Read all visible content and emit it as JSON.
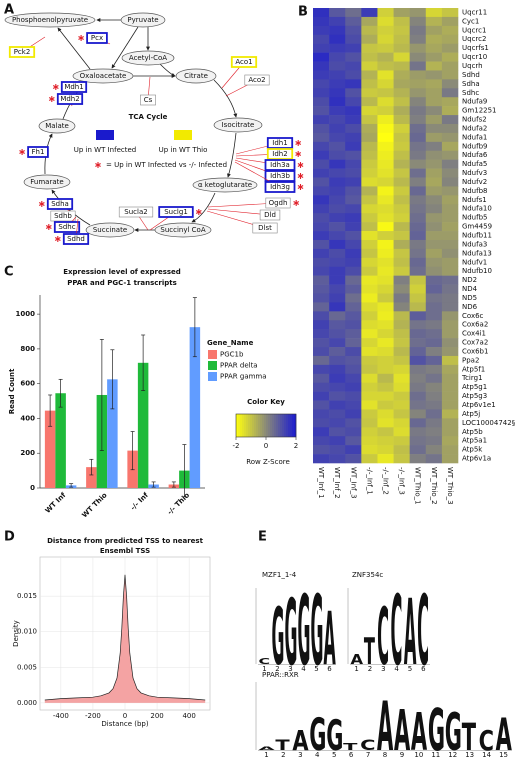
{
  "panel_labels": [
    "A",
    "B",
    "C",
    "D",
    "E"
  ],
  "tca": {
    "title": "TCA Cycle",
    "metabolites": [
      "Phosphoenolpyruvate",
      "Pyruvate",
      "Acetyl-CoA",
      "Oxaloacetate",
      "Citrate",
      "Isocitrate",
      "α ketoglutarate",
      "Succinyl CoA",
      "Succinate",
      "Fumarate",
      "Malate"
    ],
    "enzymes": [
      {
        "name": "Pck2",
        "up": 1,
        "star": false
      },
      {
        "name": "Pcx",
        "up": 0,
        "star": true
      },
      {
        "name": "Cs",
        "up": null,
        "star": false
      },
      {
        "name": "Aco1",
        "up": 1,
        "star": false
      },
      {
        "name": "Aco2",
        "up": null,
        "star": false
      },
      {
        "name": "Mdh1",
        "up": 0,
        "star": true
      },
      {
        "name": "Mdh2",
        "up": 0,
        "star": true
      },
      {
        "name": "Idh1",
        "up": 0,
        "star": true
      },
      {
        "name": "Idh2",
        "up": 1,
        "star": true
      },
      {
        "name": "Idh3a",
        "up": 0,
        "star": true
      },
      {
        "name": "Idh3b",
        "up": 0,
        "star": true
      },
      {
        "name": "Idh3g",
        "up": 0,
        "star": true
      },
      {
        "name": "Fh1",
        "up": 0,
        "star": true
      },
      {
        "name": "Ogdh",
        "up": null,
        "star": true
      },
      {
        "name": "Dld",
        "up": null,
        "star": false
      },
      {
        "name": "Dlst",
        "up": null,
        "star": false
      },
      {
        "name": "Sucla2",
        "up": null,
        "star": false
      },
      {
        "name": "Suclg1",
        "up": 0,
        "star": true
      },
      {
        "name": "Sdha",
        "up": 0,
        "star": true
      },
      {
        "name": "Sdhb",
        "up": null,
        "star": false
      },
      {
        "name": "Sdhc",
        "up": 0,
        "star": true
      },
      {
        "name": "Sdhd",
        "up": 0,
        "star": true
      }
    ],
    "legend": [
      {
        "label": "Up in WT Infected",
        "color": "#1a1acc"
      },
      {
        "label": "Up in WT Thio",
        "color": "#f2ea00"
      }
    ],
    "star_note": "=  Up in WT Infected vs -/- Infected",
    "star_color": "#e0202a"
  },
  "chart_data": [
    {
      "type": "heatmap",
      "columns": [
        "WT_Inf_1",
        "WT_Inf_2",
        "WT_Inf_3",
        "-/-_Inf_1",
        "-/-_Inf_2",
        "-/-_Inf_3",
        "WT_Thio_1",
        "WT_Thio_2",
        "WT_Thio_3"
      ],
      "rows": [
        "Uqcr11",
        "Cyc1",
        "Uqcrc1",
        "Uqcrc2",
        "Uqcrfs1",
        "Uqcr10",
        "Uqcrh",
        "Sdhd",
        "Sdha",
        "Sdhc",
        "Ndufa9",
        "Gm12251",
        "Ndufs2",
        "Ndufa2",
        "Ndufa1",
        "Ndufb9",
        "Ndufa6",
        "Ndufa5",
        "Ndufv3",
        "Ndufv2",
        "Ndufb8",
        "Ndufs1",
        "Ndufa10",
        "Ndufb5",
        "Gm4459",
        "Ndufb11",
        "Ndufa3",
        "Ndufa13",
        "Ndufv1",
        "Ndufb10",
        "ND2",
        "ND4",
        "ND5",
        "ND6",
        "Cox6c",
        "Cox6a2",
        "Cox4i1",
        "Cox7a2",
        "Cox6b1",
        "Ppa2",
        "Atp5f1",
        "Tcirg1",
        "Atp5g1",
        "Atp5g3",
        "Atp6v1e1",
        "Atp5j",
        "LOC10004742§",
        "Atp5b",
        "Atp5a1",
        "Atp5k",
        "Atp6v1a"
      ],
      "values": [
        [
          1.6,
          0.9,
          0.5,
          1.4,
          -1.2,
          -0.4,
          -0.2,
          -1.3,
          -1.0
        ],
        [
          1.5,
          1.3,
          0.8,
          -0.5,
          -1.4,
          -0.9,
          0.1,
          -0.7,
          -0.4
        ],
        [
          1.4,
          1.5,
          1.0,
          -0.8,
          -1.2,
          -1.0,
          0.3,
          -0.4,
          -0.6
        ],
        [
          1.2,
          1.6,
          1.1,
          -0.6,
          -1.3,
          -0.9,
          0.2,
          -0.6,
          -0.5
        ],
        [
          1.3,
          1.4,
          1.3,
          -1.0,
          -1.1,
          -0.8,
          -0.2,
          -0.5,
          -0.3
        ],
        [
          1.7,
          1.2,
          1.0,
          -0.9,
          -0.7,
          -1.3,
          0.0,
          -0.3,
          -0.6
        ],
        [
          1.5,
          1.1,
          1.2,
          -1.2,
          -0.9,
          -0.8,
          0.4,
          -0.7,
          -0.4
        ],
        [
          1.4,
          1.3,
          1.1,
          -0.7,
          -1.5,
          -0.6,
          -0.3,
          -0.2,
          -0.4
        ],
        [
          1.2,
          1.4,
          1.5,
          -0.9,
          -1.3,
          -0.5,
          -0.4,
          -0.5,
          0.0
        ],
        [
          1.3,
          1.5,
          1.0,
          -1.1,
          -1.0,
          -0.7,
          -0.2,
          -0.4,
          0.3
        ],
        [
          1.1,
          1.6,
          1.2,
          -0.8,
          -1.4,
          -0.9,
          0.1,
          -0.4,
          -0.5
        ],
        [
          1.0,
          1.4,
          1.5,
          -1.3,
          -1.2,
          -0.6,
          0.3,
          0.0,
          -0.6
        ],
        [
          1.3,
          1.2,
          1.4,
          -1.0,
          -1.7,
          -0.8,
          0.2,
          -0.3,
          0.3
        ],
        [
          1.0,
          1.3,
          1.1,
          -0.6,
          -1.9,
          -1.2,
          0.5,
          0.0,
          0.0
        ],
        [
          0.9,
          1.2,
          1.3,
          -0.5,
          -2.0,
          -1.0,
          0.6,
          -0.3,
          -0.2
        ],
        [
          1.2,
          1.0,
          1.4,
          -0.8,
          -1.8,
          -1.1,
          0.4,
          0.2,
          -0.5
        ],
        [
          1.4,
          1.1,
          1.0,
          -0.9,
          -1.7,
          -0.9,
          0.3,
          -0.1,
          -0.2
        ],
        [
          1.1,
          1.5,
          1.2,
          -1.1,
          -1.6,
          -0.7,
          0.0,
          -0.2,
          0.2
        ],
        [
          1.3,
          1.2,
          1.1,
          -1.2,
          -1.5,
          -1.0,
          0.5,
          -0.4,
          0.0
        ],
        [
          1.0,
          1.4,
          1.3,
          -1.4,
          -1.3,
          -0.8,
          0.2,
          -0.5,
          0.1
        ],
        [
          1.2,
          1.3,
          1.0,
          -0.7,
          -1.8,
          -1.1,
          0.6,
          -0.3,
          -0.2
        ],
        [
          1.5,
          1.2,
          0.9,
          -1.0,
          -1.6,
          -0.9,
          0.3,
          0.0,
          -0.4
        ],
        [
          1.3,
          1.1,
          1.2,
          -1.3,
          -1.4,
          -1.1,
          0.4,
          0.1,
          -0.3
        ],
        [
          1.1,
          1.3,
          1.4,
          -1.1,
          -1.5,
          -1.2,
          0.5,
          -0.2,
          -0.3
        ],
        [
          1.2,
          1.0,
          1.3,
          -0.9,
          -1.9,
          -0.8,
          0.6,
          -0.1,
          -0.4
        ],
        [
          1.4,
          1.2,
          1.0,
          -1.5,
          -1.2,
          -1.0,
          0.7,
          -0.3,
          -0.3
        ],
        [
          1.0,
          1.5,
          1.2,
          -1.2,
          -1.8,
          -0.6,
          0.3,
          -0.2,
          -0.2
        ],
        [
          1.3,
          1.1,
          1.4,
          -1.0,
          -1.7,
          -1.0,
          0.4,
          -0.4,
          -0.1
        ],
        [
          1.1,
          1.2,
          1.3,
          -1.3,
          -1.5,
          -0.9,
          0.6,
          -0.2,
          -0.3
        ],
        [
          1.2,
          1.4,
          1.1,
          -1.1,
          -1.6,
          -1.1,
          0.5,
          -0.1,
          -0.3
        ],
        [
          0.8,
          1.4,
          0.6,
          -1.6,
          -1.5,
          0.2,
          -1.0,
          0.6,
          0.5
        ],
        [
          0.9,
          1.2,
          0.8,
          -1.5,
          -1.3,
          0.0,
          -1.2,
          0.7,
          0.4
        ],
        [
          1.0,
          1.3,
          0.5,
          -1.7,
          -1.1,
          0.3,
          -1.0,
          0.4,
          0.3
        ],
        [
          0.7,
          1.5,
          0.7,
          -1.4,
          -1.6,
          0.1,
          -0.8,
          0.5,
          0.3
        ],
        [
          1.1,
          0.6,
          0.9,
          -1.2,
          -1.7,
          -0.8,
          0.8,
          0.5,
          -0.2
        ],
        [
          1.3,
          0.9,
          1.0,
          -1.4,
          -1.5,
          -0.7,
          0.4,
          0.3,
          -0.3
        ],
        [
          1.2,
          1.0,
          0.8,
          -1.6,
          -1.3,
          -0.9,
          0.6,
          0.5,
          -0.3
        ],
        [
          1.0,
          1.2,
          0.7,
          -1.3,
          -1.6,
          -1.0,
          0.5,
          0.6,
          -0.1
        ],
        [
          1.1,
          0.8,
          1.1,
          -1.5,
          -1.4,
          -0.8,
          0.7,
          0.2,
          -0.2
        ],
        [
          0.6,
          1.0,
          0.9,
          -1.1,
          -1.2,
          -1.0,
          1.0,
          0.7,
          -0.9
        ],
        [
          1.2,
          1.3,
          1.0,
          -1.0,
          -1.2,
          -1.3,
          0.3,
          0.2,
          -0.5
        ],
        [
          0.9,
          1.4,
          1.2,
          -1.4,
          -0.8,
          -1.5,
          0.2,
          0.4,
          -0.4
        ],
        [
          1.1,
          1.2,
          1.3,
          -1.2,
          -1.0,
          -1.4,
          0.3,
          0.1,
          -0.4
        ],
        [
          1.3,
          1.0,
          1.1,
          -1.3,
          -1.3,
          -1.1,
          0.5,
          0.2,
          -0.4
        ],
        [
          1.0,
          1.3,
          1.2,
          -1.5,
          -1.1,
          -1.2,
          0.4,
          0.3,
          -0.4
        ],
        [
          1.2,
          1.1,
          1.3,
          -1.1,
          -1.4,
          -1.0,
          0.1,
          0.5,
          -0.7
        ],
        [
          1.1,
          1.2,
          1.0,
          -1.0,
          -1.5,
          -1.3,
          0.6,
          0.3,
          -0.4
        ],
        [
          1.4,
          1.0,
          1.1,
          -1.2,
          -1.0,
          -1.4,
          0.3,
          0.2,
          -0.4
        ],
        [
          1.2,
          1.3,
          0.9,
          -1.3,
          -1.2,
          -1.1,
          0.4,
          0.3,
          -0.5
        ],
        [
          1.0,
          1.1,
          1.3,
          -1.4,
          -1.3,
          -0.9,
          0.5,
          0.1,
          -0.4
        ],
        [
          1.3,
          1.2,
          1.0,
          -1.1,
          -1.6,
          -1.0,
          0.2,
          0.4,
          -0.4
        ]
      ],
      "zlim": [
        -2,
        2
      ],
      "colors": [
        "#ffff10",
        "#8a8a78",
        "#1a1ad0"
      ],
      "key_title": "Color Key",
      "key_label": "Row Z-Score",
      "key_ticks": [
        -2,
        0,
        2
      ]
    },
    {
      "type": "bar",
      "title": "Expression level of expressed\nPPAR and PGC-1 transcripts",
      "categories": [
        "WT Inf",
        "WT Thio",
        "-/- Inf",
        "-/- Thio"
      ],
      "series": [
        {
          "name": "PGC1b",
          "color": "#f8766d",
          "values": [
            445,
            120,
            215,
            20
          ],
          "errors": [
            90,
            45,
            110,
            15
          ]
        },
        {
          "name": "PPAR delta",
          "color": "#1fba3a",
          "values": [
            545,
            535,
            720,
            100
          ],
          "errors": [
            80,
            320,
            160,
            150
          ]
        },
        {
          "name": "PPAR gamma",
          "color": "#619cff",
          "values": [
            15,
            625,
            20,
            925
          ],
          "errors": [
            10,
            170,
            15,
            170
          ]
        }
      ],
      "ylabel": "Read Count",
      "legend_title": "Gene_Name",
      "ylim": [
        0,
        1110
      ],
      "yticks": [
        0,
        200,
        400,
        600,
        800,
        1000
      ]
    },
    {
      "type": "area",
      "title": "Distance from predicted TSS to nearest\nEnsembl TSS",
      "x": [
        -500,
        -400,
        -300,
        -200,
        -150,
        -100,
        -75,
        -50,
        -30,
        -20,
        -10,
        0,
        10,
        20,
        30,
        50,
        75,
        100,
        150,
        200,
        300,
        400,
        500
      ],
      "values": [
        0.0004,
        0.0006,
        0.0007,
        0.0008,
        0.001,
        0.0014,
        0.002,
        0.0035,
        0.007,
        0.0105,
        0.015,
        0.018,
        0.015,
        0.0105,
        0.007,
        0.0035,
        0.002,
        0.0014,
        0.001,
        0.0008,
        0.0007,
        0.0006,
        0.0004
      ],
      "color": "#222222",
      "fill": "#f4a3a3",
      "xlabel": "Distance (bp)",
      "ylabel": "Density",
      "xlim": [
        -530,
        530
      ],
      "ylim": [
        -0.001,
        0.0205
      ],
      "xticks": [
        -400,
        -200,
        0,
        200,
        400
      ],
      "yticks": [
        {
          "value": 0,
          "label": "0.000"
        },
        {
          "value": 0.005,
          "label": "0.005"
        },
        {
          "value": 0.01,
          "label": "0.010"
        },
        {
          "value": 0.015,
          "label": "0.015"
        }
      ]
    }
  ],
  "motifs": [
    {
      "name": "MZF1_1-4",
      "positions": [
        {
          "letter": "C",
          "height": 0.15
        },
        {
          "letter": "G",
          "height": 1.5
        },
        {
          "letter": "G",
          "height": 1.75
        },
        {
          "letter": "G",
          "height": 1.85
        },
        {
          "letter": "G",
          "height": 1.85
        },
        {
          "letter": "A",
          "height": 1.4
        }
      ],
      "xticks": [
        1,
        2,
        3,
        4,
        5,
        6
      ]
    },
    {
      "name": "ZNF354c",
      "positions": [
        {
          "letter": "A",
          "height": 0.25
        },
        {
          "letter": "T",
          "height": 0.7
        },
        {
          "letter": "C",
          "height": 1.5
        },
        {
          "letter": "C",
          "height": 1.85
        },
        {
          "letter": "A",
          "height": 1.75
        },
        {
          "letter": "C",
          "height": 1.85
        }
      ],
      "xticks": [
        1,
        2,
        3,
        4,
        5,
        6
      ]
    },
    {
      "name": "PPAR::RXR",
      "positions": [
        {
          "letter": "A",
          "height": 0.1
        },
        {
          "letter": "T",
          "height": 0.3
        },
        {
          "letter": "A",
          "height": 0.6
        },
        {
          "letter": "G",
          "height": 0.95
        },
        {
          "letter": "G",
          "height": 0.9
        },
        {
          "letter": "T",
          "height": 0.2
        },
        {
          "letter": "C",
          "height": 0.3
        },
        {
          "letter": "A",
          "height": 1.45
        },
        {
          "letter": "A",
          "height": 1.2
        },
        {
          "letter": "A",
          "height": 1.1
        },
        {
          "letter": "G",
          "height": 1.25
        },
        {
          "letter": "G",
          "height": 1.1
        },
        {
          "letter": "T",
          "height": 0.8
        },
        {
          "letter": "C",
          "height": 0.6
        },
        {
          "letter": "A",
          "height": 0.95
        }
      ],
      "xticks": [
        1,
        2,
        3,
        4,
        5,
        6,
        7,
        8,
        9,
        10,
        11,
        12,
        13,
        14,
        15
      ]
    }
  ],
  "letter_colors": {
    "A": "#1ea01e",
    "C": "#1a1ad8",
    "G": "#c9b000",
    "T": "#e0202a"
  }
}
